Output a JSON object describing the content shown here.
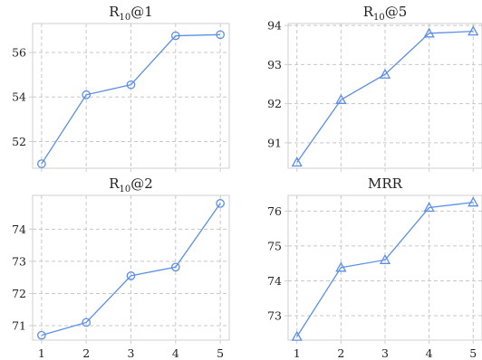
{
  "figure": {
    "line_color": "#5b8ee6",
    "x_tick_labels": [
      "1",
      "2",
      "3",
      "4",
      "5"
    ],
    "grid": true
  },
  "chart_data": [
    {
      "type": "line",
      "title_main": "R",
      "title_sub": "10",
      "title_rest": "@1",
      "marker": "circle",
      "x": [
        1,
        2,
        3,
        4,
        5
      ],
      "y": [
        51.0,
        54.1,
        54.55,
        56.75,
        56.8
      ],
      "xlim": [
        0.8,
        5.2
      ],
      "ylim": [
        50.8,
        57.3
      ],
      "yticks": [
        52,
        54,
        56
      ],
      "show_x_ticklabels": false
    },
    {
      "type": "line",
      "title_main": "R",
      "title_sub": "10",
      "title_rest": "@5",
      "marker": "triangle",
      "x": [
        1,
        2,
        3,
        4,
        5
      ],
      "y": [
        90.5,
        92.1,
        92.75,
        93.8,
        93.85
      ],
      "xlim": [
        0.8,
        5.2
      ],
      "ylim": [
        90.35,
        94.05
      ],
      "yticks": [
        91,
        92,
        93,
        94
      ],
      "show_x_ticklabels": false
    },
    {
      "type": "line",
      "title_main": "R",
      "title_sub": "10",
      "title_rest": "@2",
      "marker": "circle",
      "x": [
        1,
        2,
        3,
        4,
        5
      ],
      "y": [
        70.7,
        71.1,
        72.55,
        72.82,
        74.8
      ],
      "xlim": [
        0.8,
        5.2
      ],
      "ylim": [
        70.55,
        75.05
      ],
      "yticks": [
        71,
        72,
        73,
        74
      ],
      "show_x_ticklabels": true
    },
    {
      "type": "line",
      "title_main": "MRR",
      "title_sub": "",
      "title_rest": "",
      "marker": "triangle",
      "x": [
        1,
        2,
        3,
        4,
        5
      ],
      "y": [
        72.4,
        74.38,
        74.6,
        76.1,
        76.25
      ],
      "xlim": [
        0.8,
        5.2
      ],
      "ylim": [
        72.3,
        76.45
      ],
      "yticks": [
        73,
        74,
        75,
        76
      ],
      "show_x_ticklabels": true
    }
  ]
}
